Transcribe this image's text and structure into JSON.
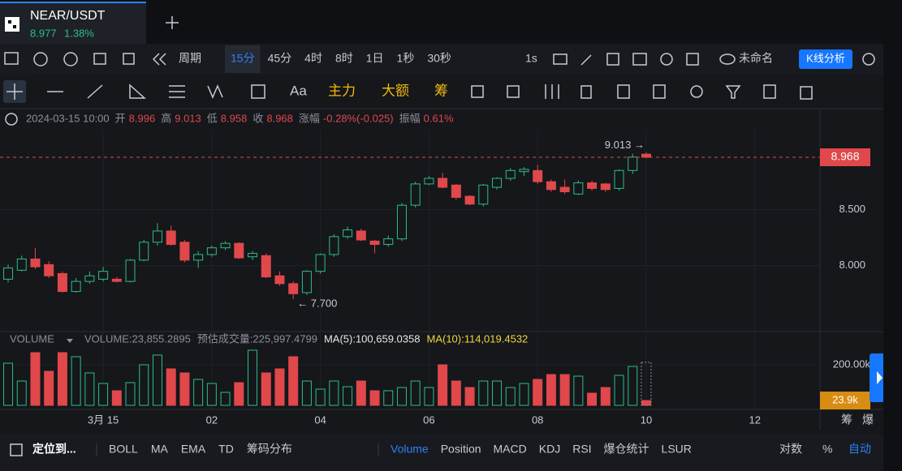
{
  "header": {
    "pair": "NEAR/USDT",
    "price": "8.977",
    "change": "1.38%"
  },
  "toolbar": {
    "period_label": "周期",
    "intervals": [
      "15分",
      "45分",
      "4时",
      "8时",
      "1日",
      "1秒",
      "30秒"
    ],
    "active_interval": 0,
    "seconds_button": "1s",
    "layout_name": "未命名",
    "analysis_button": "K线分析"
  },
  "drawing_toolbar": {
    "items": [
      "Aa",
      "主力",
      "大额",
      "筹"
    ]
  },
  "ohlc_info": {
    "datetime": "2024-03-15 10:00",
    "fields": [
      {
        "label": "开",
        "value": "8.996"
      },
      {
        "label": "高",
        "value": "9.013"
      },
      {
        "label": "低",
        "value": "8.958"
      },
      {
        "label": "收",
        "value": "8.968"
      },
      {
        "label": "涨幅",
        "value": "-0.28%(-0.025)"
      },
      {
        "label": "振幅",
        "value": "0.61%"
      }
    ]
  },
  "chart_data": {
    "type": "candlestick",
    "up_color": "#2ebd85",
    "down_color": "#e0484b",
    "grid": true,
    "x": [
      -1.75,
      -1.5,
      -1.25,
      -1,
      -0.75,
      -0.5,
      -0.25,
      0,
      0.25,
      0.5,
      0.75,
      1,
      1.25,
      1.5,
      1.75,
      2,
      2.25,
      2.5,
      2.75,
      3,
      3.25,
      3.5,
      3.75,
      4,
      4.25,
      4.5,
      4.75,
      5,
      5.25,
      5.5,
      5.75,
      6,
      6.25,
      6.5,
      6.75,
      7,
      7.25,
      7.5,
      7.75,
      8,
      8.25,
      8.5,
      8.75,
      9,
      9.25,
      9.5,
      9.75,
      10
    ],
    "open": [
      7.88,
      7.96,
      8.06,
      8.01,
      7.93,
      7.77,
      7.86,
      7.88,
      7.88,
      7.86,
      8.05,
      8.21,
      8.31,
      8.21,
      8.05,
      8.1,
      8.16,
      8.2,
      8.08,
      8.09,
      7.91,
      7.84,
      7.76,
      7.95,
      8.1,
      8.26,
      8.31,
      8.22,
      8.19,
      8.24,
      8.54,
      8.73,
      8.78,
      8.72,
      8.62,
      8.55,
      8.7,
      8.78,
      8.84,
      8.85,
      8.75,
      8.7,
      8.64,
      8.74,
      8.73,
      8.69,
      8.85,
      8.996
    ],
    "high": [
      8.01,
      8.09,
      8.16,
      8.04,
      7.95,
      7.89,
      7.95,
      7.99,
      7.9,
      8.06,
      8.23,
      8.38,
      8.36,
      8.23,
      8.13,
      8.18,
      8.22,
      8.21,
      8.13,
      8.11,
      7.95,
      7.86,
      7.96,
      8.11,
      8.28,
      8.35,
      8.33,
      8.23,
      8.27,
      8.56,
      8.75,
      8.8,
      8.83,
      8.73,
      8.63,
      8.73,
      8.79,
      8.87,
      8.88,
      8.9,
      8.77,
      8.77,
      8.76,
      8.76,
      8.74,
      8.86,
      9.0,
      9.013
    ],
    "low": [
      7.85,
      7.95,
      7.97,
      7.89,
      7.76,
      7.76,
      7.84,
      7.86,
      7.85,
      7.85,
      8.04,
      8.18,
      8.18,
      8.03,
      7.98,
      8.08,
      8.14,
      8.06,
      8.05,
      7.89,
      7.82,
      7.7,
      7.74,
      7.93,
      8.08,
      8.24,
      8.22,
      8.11,
      8.17,
      8.22,
      8.52,
      8.72,
      8.69,
      8.59,
      8.54,
      8.53,
      8.68,
      8.76,
      8.8,
      8.73,
      8.66,
      8.64,
      8.63,
      8.67,
      8.66,
      8.67,
      8.82,
      8.958
    ],
    "close": [
      7.98,
      8.06,
      7.99,
      7.91,
      7.77,
      7.86,
      7.91,
      7.95,
      7.86,
      8.05,
      8.21,
      8.31,
      8.19,
      8.05,
      8.1,
      8.16,
      8.2,
      8.07,
      8.11,
      7.9,
      7.84,
      7.75,
      7.95,
      8.1,
      8.26,
      8.32,
      8.23,
      8.19,
      8.24,
      8.54,
      8.73,
      8.78,
      8.7,
      8.61,
      8.55,
      8.72,
      8.78,
      8.85,
      8.86,
      8.75,
      8.68,
      8.66,
      8.74,
      8.69,
      8.68,
      8.85,
      8.97,
      8.968
    ],
    "volume": [
      208000,
      120000,
      260000,
      168000,
      260000,
      240000,
      160000,
      108000,
      72000,
      112000,
      200000,
      248000,
      180000,
      160000,
      128000,
      108000,
      64000,
      112000,
      272000,
      160000,
      180000,
      240000,
      120000,
      80000,
      120000,
      92000,
      120000,
      72000,
      72000,
      88000,
      120000,
      88000,
      200000,
      120000,
      88000,
      120000,
      120000,
      88000,
      108000,
      128000,
      152000,
      152000,
      144000,
      60000,
      88000,
      148000,
      192000,
      23855.2895
    ],
    "xlim": [
      -1.9,
      13.2
    ],
    "xticks": [
      {
        "value": 0,
        "label": "3月 15"
      },
      {
        "value": 2,
        "label": "02"
      },
      {
        "value": 4,
        "label": "04"
      },
      {
        "value": 6,
        "label": "06"
      },
      {
        "value": 8,
        "label": "08"
      },
      {
        "value": 10,
        "label": "10"
      },
      {
        "value": 12,
        "label": "12"
      }
    ],
    "ylim": [
      7.586,
      9.395
    ],
    "yticks": [
      {
        "value": 8,
        "label": "8.000"
      },
      {
        "value": 8.5,
        "label": "8.500"
      }
    ],
    "y2lim": [
      0,
      280000
    ],
    "y2ticks": [
      {
        "value": 200000,
        "label": "200.00k"
      }
    ],
    "volume_current": {
      "value": 23855.2895,
      "label": "23.9k"
    },
    "high_marker": "9.013 →",
    "low_marker": "← 7.700"
  },
  "volume_header": {
    "name": "VOLUME",
    "items": [
      "VOLUME:23,855.2895",
      "预估成交量:225,997.4799",
      "MA(5):100,659.0358",
      "MA(10):114,019.4532"
    ]
  },
  "axis_side_labels": [
    "筹",
    "爆"
  ],
  "bottom_bar": {
    "locate": "定位到...",
    "main_indicators": [
      "BOLL",
      "MA",
      "EMA",
      "TD",
      "筹码分布"
    ],
    "sub_indicators": [
      "Volume",
      "Position",
      "MACD",
      "KDJ",
      "RSI",
      "爆仓统计",
      "LSUR"
    ],
    "options": [
      "对数",
      "%",
      "自动"
    ]
  }
}
